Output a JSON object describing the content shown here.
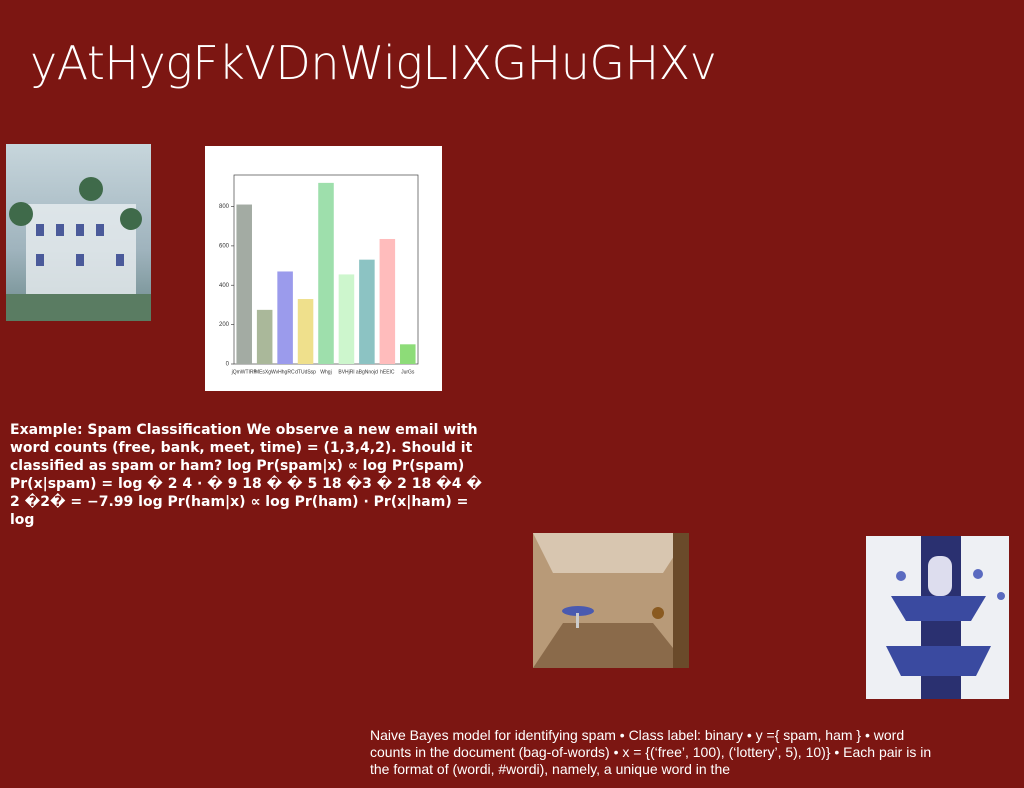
{
  "title": "yAtHygFkVDnWigLIXGHuGHXv",
  "text_blocks": [
    "Example: Spam Classification We observe a new email with word counts (free, bank, meet, time) = (1,3,4,2). Should it classified as spam or ham? log Pr(spam|x) ∝ log Pr(spam) Pr(x|spam) = log � 2 4 · � 9 18 � � 5 18 �3 � 2 18 �4 � 2 �2� = −7.99 log Pr(ham|x) ∝ log Pr(ham) · Pr(x|ham) = log",
    "Naive Bayes model for identifying spam • Class label: binary • y ={ spam, ham } • word counts in the document (bag-of-words) • x = {(‘free’, 100), (‘lottery’, 5), 10)} • Each pair is in the format of (wordi, #wordi), namely, a unique word in the"
  ],
  "chart_data": {
    "type": "bar",
    "categories": [
      "jQmWTIRP",
      "fMEsXgW",
      "vHhgRC",
      "dTUdSsp",
      "Whgj",
      "BVHjRl",
      "aBgNnojd",
      "hEEIC",
      "JurGs"
    ],
    "values": [
      810,
      275,
      470,
      330,
      920,
      455,
      530,
      635,
      100
    ],
    "colors": [
      "#a3aba3",
      "#aab89a",
      "#9b9bec",
      "#efe08c",
      "#9edfac",
      "#cdf6cd",
      "#8cc3c3",
      "#ffbcbc",
      "#8ddc78"
    ],
    "ylim": [
      0,
      960
    ],
    "yticks": [
      0,
      200,
      400,
      600,
      800
    ]
  }
}
